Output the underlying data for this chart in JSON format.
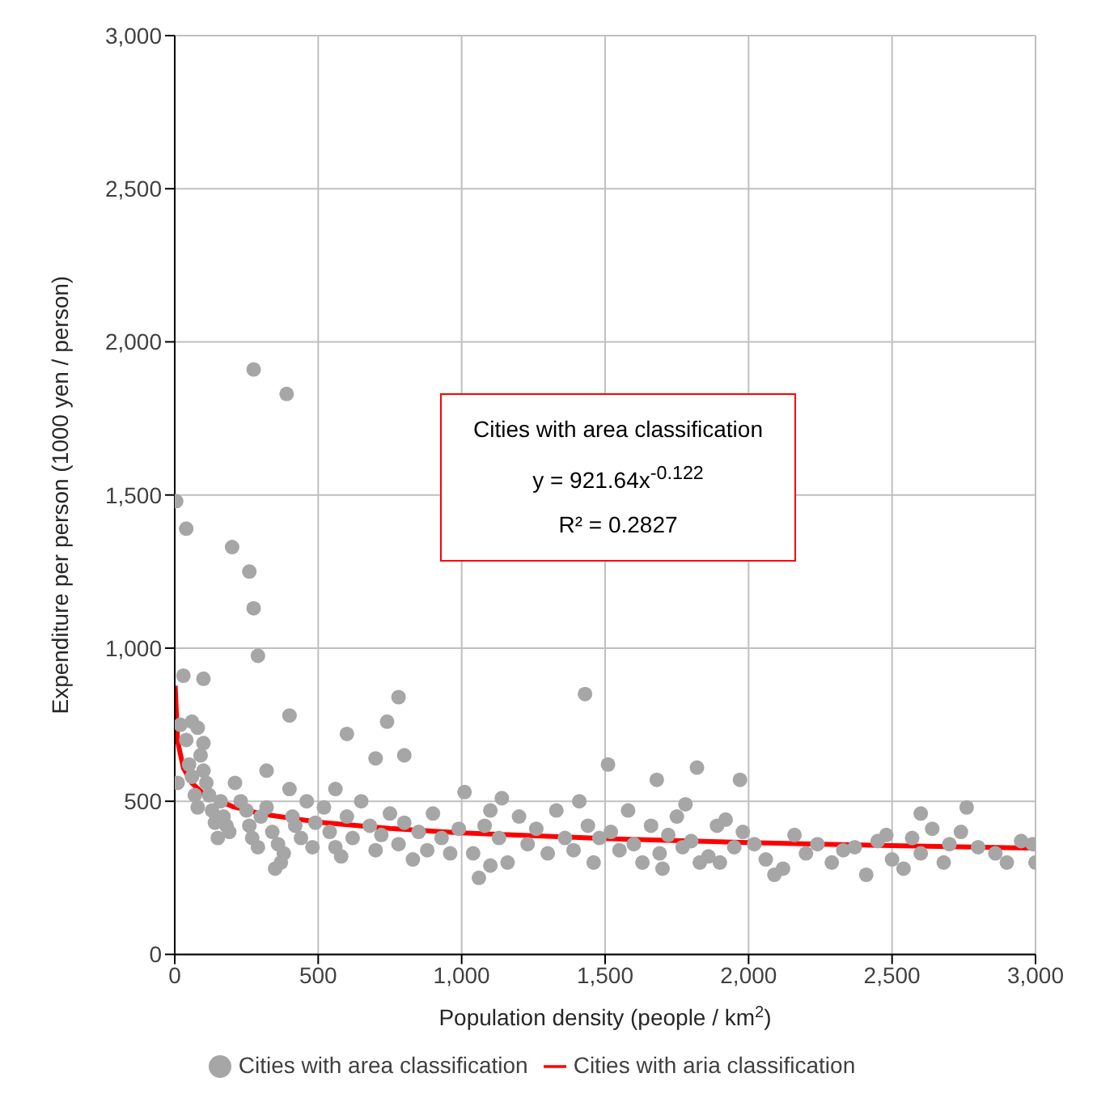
{
  "chart_data": {
    "type": "scatter",
    "xlabel": "Population density (people / km$^{2}$)",
    "ylabel": "Expenditure per person (1000 yen / person)",
    "xlim": [
      0,
      3000
    ],
    "ylim": [
      0,
      3000
    ],
    "xticks": [
      0,
      500,
      {
        "value": 1000,
        "label": "1,000"
      },
      {
        "value": 1500,
        "label": "1,500"
      },
      {
        "value": 2000,
        "label": "2,000"
      },
      {
        "value": 2500,
        "label": "2,500"
      },
      {
        "value": 3000,
        "label": "3,000"
      }
    ],
    "yticks": [
      0,
      500,
      {
        "value": 1000,
        "label": "1,000"
      },
      {
        "value": 1500,
        "label": "1,500"
      },
      {
        "value": 2000,
        "label": "2,000"
      },
      {
        "value": 2500,
        "label": "2,500"
      },
      {
        "value": 3000,
        "label": "3,000"
      }
    ],
    "grid": true,
    "legend": "bottom",
    "marker": "circle",
    "annotations": [
      "Cities with area classification",
      "y = 921.64x$^{-0.122}$",
      "R² = 0.2827"
    ],
    "series": [
      {
        "name": "Cities with area classification",
        "color": "#a6a6a6",
        "x": [
          275,
          390,
          5,
          40,
          200,
          260,
          275,
          290,
          30,
          100,
          400,
          600,
          780,
          800,
          700,
          1430,
          1510,
          1820,
          1970,
          1680,
          1780,
          2760,
          10,
          20,
          40,
          50,
          60,
          70,
          80,
          90,
          100,
          110,
          120,
          130,
          140,
          150,
          160,
          170,
          180,
          190,
          60,
          80,
          100,
          210,
          230,
          250,
          260,
          270,
          290,
          300,
          320,
          340,
          360,
          380,
          400,
          410,
          420,
          440,
          460,
          480,
          490,
          350,
          320,
          370,
          520,
          540,
          560,
          580,
          600,
          620,
          650,
          680,
          700,
          720,
          750,
          780,
          800,
          830,
          850,
          880,
          900,
          930,
          960,
          990,
          740,
          560,
          1010,
          1040,
          1060,
          1080,
          1100,
          1130,
          1160,
          1200,
          1230,
          1260,
          1300,
          1330,
          1360,
          1390,
          1410,
          1440,
          1460,
          1480,
          1140,
          1100,
          1520,
          1550,
          1580,
          1600,
          1630,
          1660,
          1690,
          1720,
          1750,
          1770,
          1800,
          1830,
          1860,
          1890,
          1920,
          1950,
          1980,
          1700,
          1900,
          2020,
          2060,
          2090,
          2120,
          2160,
          2200,
          2240,
          2290,
          2330,
          2370,
          2410,
          2450,
          2500,
          2540,
          2570,
          2600,
          2640,
          2680,
          2700,
          2740,
          2800,
          2860,
          2900,
          2950,
          2990,
          3000,
          2480,
          2600
        ],
        "values": [
          1910,
          1830,
          1480,
          1390,
          1330,
          1250,
          1130,
          975,
          910,
          900,
          780,
          720,
          840,
          650,
          640,
          850,
          620,
          610,
          570,
          570,
          490,
          480,
          560,
          750,
          700,
          620,
          580,
          520,
          480,
          650,
          600,
          560,
          520,
          470,
          430,
          380,
          500,
          450,
          420,
          400,
          760,
          740,
          690,
          560,
          500,
          470,
          420,
          380,
          350,
          450,
          480,
          400,
          360,
          330,
          540,
          450,
          420,
          380,
          500,
          350,
          430,
          280,
          600,
          300,
          480,
          400,
          350,
          320,
          450,
          380,
          500,
          420,
          340,
          390,
          460,
          360,
          430,
          310,
          400,
          340,
          460,
          380,
          330,
          410,
          760,
          540,
          530,
          330,
          250,
          420,
          470,
          380,
          300,
          450,
          360,
          410,
          330,
          470,
          380,
          340,
          500,
          420,
          300,
          380,
          510,
          290,
          400,
          340,
          470,
          360,
          300,
          420,
          330,
          390,
          450,
          350,
          370,
          300,
          320,
          420,
          440,
          350,
          400,
          280,
          300,
          360,
          310,
          260,
          280,
          390,
          330,
          360,
          300,
          340,
          350,
          260,
          370,
          310,
          280,
          380,
          330,
          410,
          300,
          360,
          400,
          350,
          330,
          300,
          370,
          360,
          300,
          390,
          460
        ]
      },
      {
        "name": "Cities with aria classification",
        "type": "line",
        "color": "#ff0000",
        "marker": "none",
        "x": [
          1.5,
          10,
          30,
          60,
          100,
          200,
          300,
          500,
          750,
          1000,
          1500,
          2000,
          2500,
          3000
        ],
        "values": [
          877,
          696,
          609,
          559,
          525,
          483,
          459,
          432,
          411,
          397,
          378,
          365,
          355,
          347
        ]
      }
    ]
  }
}
